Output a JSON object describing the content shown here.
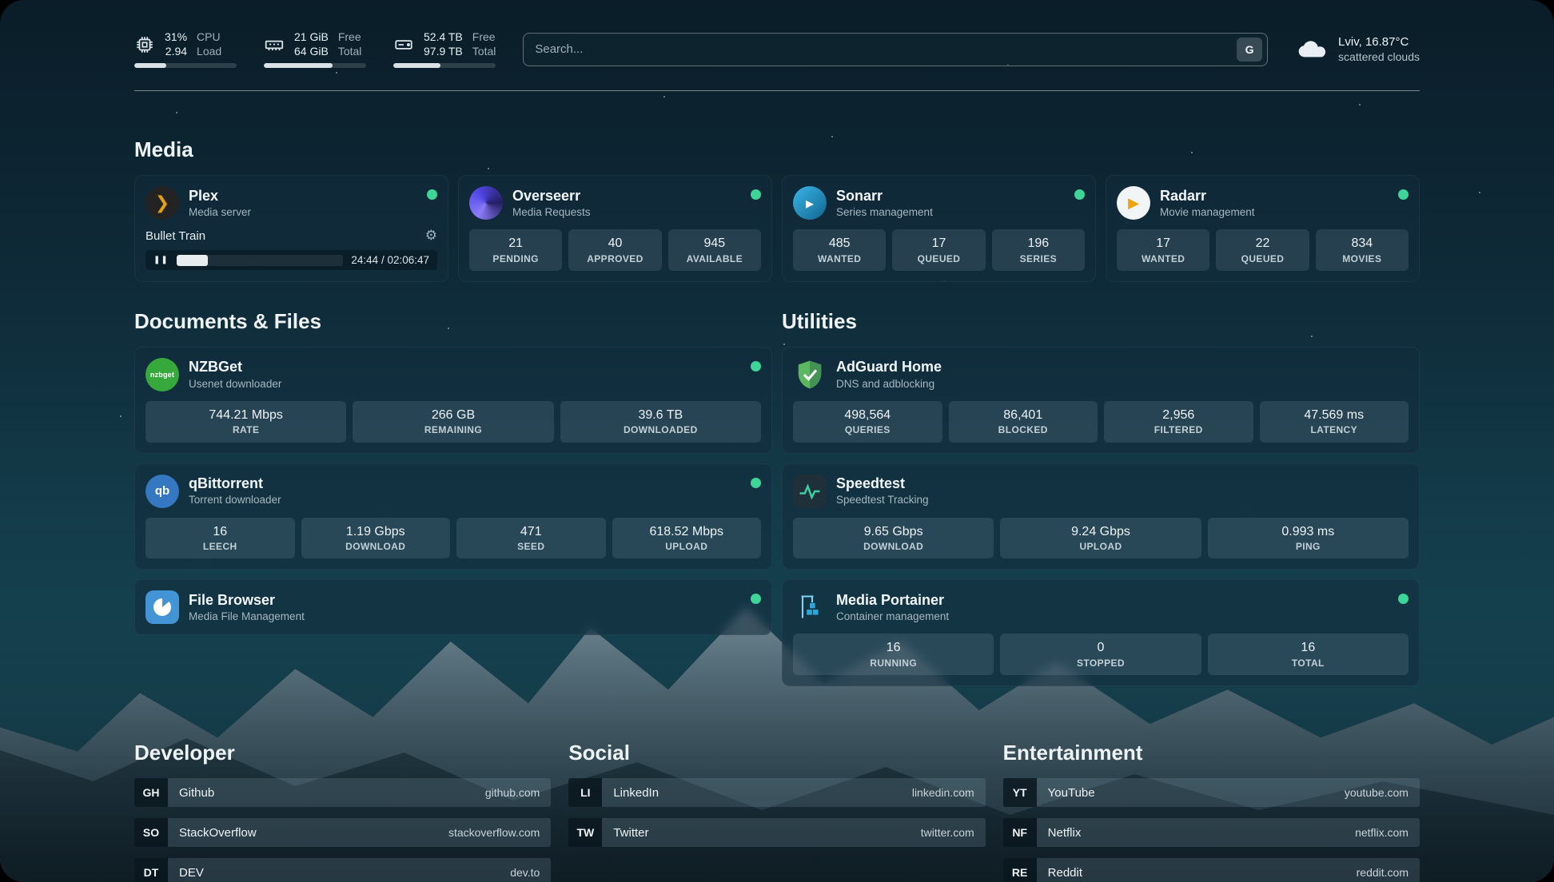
{
  "colors": {
    "status_online": "#3ed598",
    "plex_accent": "#e5a00d"
  },
  "topbar": {
    "cpu": {
      "value_top": "31%",
      "value_bottom": "2.94",
      "label_top": "CPU",
      "label_bottom": "Load",
      "fill_percent": 31
    },
    "memory": {
      "value_top": "21 GiB",
      "value_bottom": "64 GiB",
      "label_top": "Free",
      "label_bottom": "Total",
      "fill_percent": 67
    },
    "disk": {
      "value_top": "52.4 TB",
      "value_bottom": "97.9 TB",
      "label_top": "Free",
      "label_bottom": "Total",
      "fill_percent": 46
    },
    "search": {
      "placeholder": "Search...",
      "button_label": "G"
    },
    "weather": {
      "location": "Lviv, 16.87°C",
      "condition": "scattered clouds"
    }
  },
  "sections": {
    "media": {
      "title": "Media",
      "plex": {
        "name": "Plex",
        "description": "Media server",
        "now_playing": {
          "title": "Bullet Train",
          "time": "24:44 / 02:06:47",
          "progress_percent": 19,
          "pause_glyph": "❚❚",
          "gear_glyph": "⚙"
        }
      },
      "overseerr": {
        "name": "Overseerr",
        "description": "Media Requests",
        "stats": [
          {
            "value": "21",
            "label": "PENDING"
          },
          {
            "value": "40",
            "label": "APPROVED"
          },
          {
            "value": "945",
            "label": "AVAILABLE"
          }
        ]
      },
      "sonarr": {
        "name": "Sonarr",
        "description": "Series management",
        "icon_glyph": "▸",
        "stats": [
          {
            "value": "485",
            "label": "WANTED"
          },
          {
            "value": "17",
            "label": "QUEUED"
          },
          {
            "value": "196",
            "label": "SERIES"
          }
        ]
      },
      "radarr": {
        "name": "Radarr",
        "description": "Movie management",
        "icon_glyph": "▶",
        "stats": [
          {
            "value": "17",
            "label": "WANTED"
          },
          {
            "value": "22",
            "label": "QUEUED"
          },
          {
            "value": "834",
            "label": "MOVIES"
          }
        ]
      }
    },
    "documents": {
      "title": "Documents & Files",
      "nzbget": {
        "name": "NZBGet",
        "description": "Usenet downloader",
        "icon_text": "nzbget",
        "stats": [
          {
            "value": "744.21 Mbps",
            "label": "RATE"
          },
          {
            "value": "266 GB",
            "label": "REMAINING"
          },
          {
            "value": "39.6 TB",
            "label": "DOWNLOADED"
          }
        ]
      },
      "qbittorrent": {
        "name": "qBittorrent",
        "description": "Torrent downloader",
        "icon_text": "qb",
        "stats": [
          {
            "value": "16",
            "label": "LEECH"
          },
          {
            "value": "1.19 Gbps",
            "label": "DOWNLOAD"
          },
          {
            "value": "471",
            "label": "SEED"
          },
          {
            "value": "618.52 Mbps",
            "label": "UPLOAD"
          }
        ]
      },
      "filebrowser": {
        "name": "File Browser",
        "description": "Media File Management"
      }
    },
    "utilities": {
      "title": "Utilities",
      "adguard": {
        "name": "AdGuard Home",
        "description": "DNS and adblocking",
        "stats": [
          {
            "value": "498,564",
            "label": "QUERIES"
          },
          {
            "value": "86,401",
            "label": "BLOCKED"
          },
          {
            "value": "2,956",
            "label": "FILTERED"
          },
          {
            "value": "47.569 ms",
            "label": "LATENCY"
          }
        ]
      },
      "speedtest": {
        "name": "Speedtest",
        "description": "Speedtest Tracking",
        "stats": [
          {
            "value": "9.65 Gbps",
            "label": "DOWNLOAD"
          },
          {
            "value": "9.24 Gbps",
            "label": "UPLOAD"
          },
          {
            "value": "0.993 ms",
            "label": "PING"
          }
        ]
      },
      "portainer": {
        "name": "Media Portainer",
        "description": "Container management",
        "stats": [
          {
            "value": "16",
            "label": "RUNNING"
          },
          {
            "value": "0",
            "label": "STOPPED"
          },
          {
            "value": "16",
            "label": "TOTAL"
          }
        ]
      }
    },
    "bookmarks": [
      {
        "title": "Developer",
        "items": [
          {
            "abbr": "GH",
            "name": "Github",
            "url": "github.com"
          },
          {
            "abbr": "SO",
            "name": "StackOverflow",
            "url": "stackoverflow.com"
          },
          {
            "abbr": "DT",
            "name": "DEV",
            "url": "dev.to"
          }
        ]
      },
      {
        "title": "Social",
        "items": [
          {
            "abbr": "LI",
            "name": "LinkedIn",
            "url": "linkedin.com"
          },
          {
            "abbr": "TW",
            "name": "Twitter",
            "url": "twitter.com"
          }
        ]
      },
      {
        "title": "Entertainment",
        "items": [
          {
            "abbr": "YT",
            "name": "YouTube",
            "url": "youtube.com"
          },
          {
            "abbr": "NF",
            "name": "Netflix",
            "url": "netflix.com"
          },
          {
            "abbr": "RE",
            "name": "Reddit",
            "url": "reddit.com"
          }
        ]
      }
    ]
  }
}
